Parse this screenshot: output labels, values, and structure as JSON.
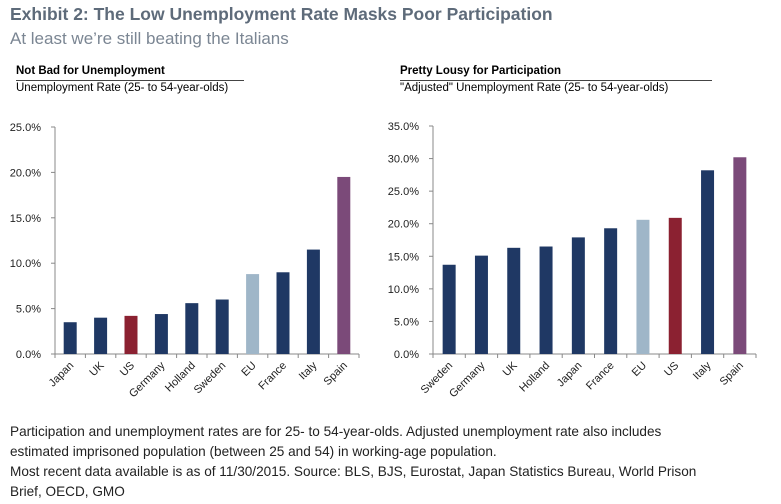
{
  "header": {
    "title": "Exhibit 2: The Low Unemployment Rate Masks Poor Participation",
    "subtitle": "At least we’re still beating the Italians"
  },
  "colors": {
    "navy": "#1f3864",
    "light_blue": "#9fb6c8",
    "us_red": "#8b2131",
    "spain_purple": "#7b4a79"
  },
  "chart_data": [
    {
      "type": "bar",
      "title": "Not Bad for Unemployment",
      "subtitle": "Unemployment Rate (25- to 54-year-olds)",
      "categories": [
        "Japan",
        "UK",
        "US",
        "Germany",
        "Holland",
        "Sweden",
        "EU",
        "France",
        "Italy",
        "Spain"
      ],
      "values": [
        3.5,
        4.0,
        4.2,
        4.4,
        5.6,
        6.0,
        8.8,
        9.0,
        11.5,
        19.5
      ],
      "bar_colors": [
        "navy",
        "navy",
        "us_red",
        "navy",
        "navy",
        "navy",
        "light_blue",
        "navy",
        "navy",
        "spain_purple"
      ],
      "ylim": [
        0,
        25
      ],
      "yticks": [
        "0.0%",
        "5.0%",
        "10.0%",
        "15.0%",
        "20.0%",
        "25.0%"
      ],
      "grid": false
    },
    {
      "type": "bar",
      "title": "Pretty Lousy for Participation",
      "subtitle": "\"Adjusted\" Unemployment Rate (25- to 54-year-olds)",
      "categories": [
        "Sweden",
        "Germany",
        "UK",
        "Holland",
        "Japan",
        "France",
        "EU",
        "US",
        "Italy",
        "Spain"
      ],
      "values": [
        13.7,
        15.1,
        16.3,
        16.5,
        17.9,
        19.3,
        20.6,
        20.9,
        28.2,
        30.2
      ],
      "bar_colors": [
        "navy",
        "navy",
        "navy",
        "navy",
        "navy",
        "navy",
        "light_blue",
        "us_red",
        "navy",
        "spain_purple"
      ],
      "ylim": [
        0,
        35
      ],
      "yticks": [
        "0.0%",
        "5.0%",
        "10.0%",
        "15.0%",
        "20.0%",
        "25.0%",
        "30.0%",
        "35.0%"
      ],
      "grid": false
    }
  ],
  "footnote": {
    "line1": "Participation and unemployment rates are for 25- to 54-year-olds. Adjusted unemployment rate also includes",
    "line2": "estimated imprisoned population (between 25 and 54) in working-age population.",
    "line3": "Most recent data available is as of 11/30/2015. Source:  BLS, BJS, Eurostat, Japan Statistics Bureau, World Prison",
    "line4": "Brief, OECD, GMO"
  }
}
